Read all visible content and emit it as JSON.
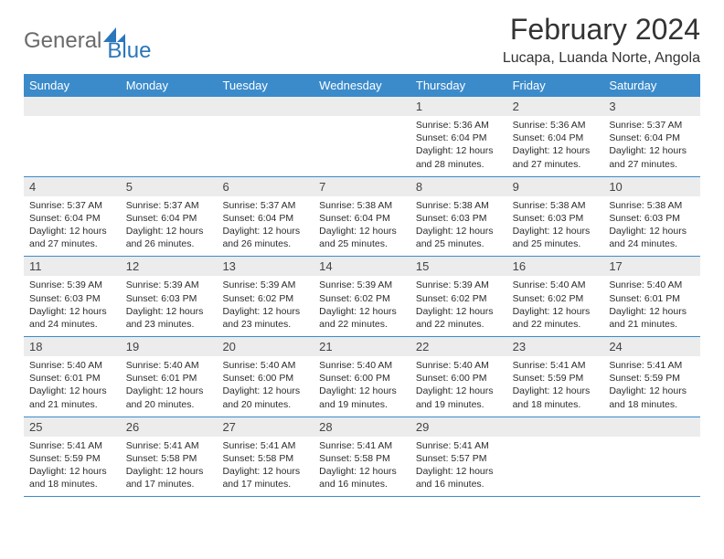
{
  "brand": {
    "general": "General",
    "blue": "Blue",
    "logo_color": "#2a77bb",
    "text_gray": "#6a6a6a"
  },
  "title": "February 2024",
  "subtitle": "Lucapa, Luanda Norte, Angola",
  "colors": {
    "header_bg": "#3b8bcb",
    "daynum_bg": "#ececec",
    "text": "#2b2b2b",
    "title_color": "#333333"
  },
  "weekdays": [
    "Sunday",
    "Monday",
    "Tuesday",
    "Wednesday",
    "Thursday",
    "Friday",
    "Saturday"
  ],
  "weeks": [
    [
      {
        "n": "",
        "sunrise": "",
        "sunset": "",
        "daylight": ""
      },
      {
        "n": "",
        "sunrise": "",
        "sunset": "",
        "daylight": ""
      },
      {
        "n": "",
        "sunrise": "",
        "sunset": "",
        "daylight": ""
      },
      {
        "n": "",
        "sunrise": "",
        "sunset": "",
        "daylight": ""
      },
      {
        "n": "1",
        "sunrise": "Sunrise: 5:36 AM",
        "sunset": "Sunset: 6:04 PM",
        "daylight": "Daylight: 12 hours and 28 minutes."
      },
      {
        "n": "2",
        "sunrise": "Sunrise: 5:36 AM",
        "sunset": "Sunset: 6:04 PM",
        "daylight": "Daylight: 12 hours and 27 minutes."
      },
      {
        "n": "3",
        "sunrise": "Sunrise: 5:37 AM",
        "sunset": "Sunset: 6:04 PM",
        "daylight": "Daylight: 12 hours and 27 minutes."
      }
    ],
    [
      {
        "n": "4",
        "sunrise": "Sunrise: 5:37 AM",
        "sunset": "Sunset: 6:04 PM",
        "daylight": "Daylight: 12 hours and 27 minutes."
      },
      {
        "n": "5",
        "sunrise": "Sunrise: 5:37 AM",
        "sunset": "Sunset: 6:04 PM",
        "daylight": "Daylight: 12 hours and 26 minutes."
      },
      {
        "n": "6",
        "sunrise": "Sunrise: 5:37 AM",
        "sunset": "Sunset: 6:04 PM",
        "daylight": "Daylight: 12 hours and 26 minutes."
      },
      {
        "n": "7",
        "sunrise": "Sunrise: 5:38 AM",
        "sunset": "Sunset: 6:04 PM",
        "daylight": "Daylight: 12 hours and 25 minutes."
      },
      {
        "n": "8",
        "sunrise": "Sunrise: 5:38 AM",
        "sunset": "Sunset: 6:03 PM",
        "daylight": "Daylight: 12 hours and 25 minutes."
      },
      {
        "n": "9",
        "sunrise": "Sunrise: 5:38 AM",
        "sunset": "Sunset: 6:03 PM",
        "daylight": "Daylight: 12 hours and 25 minutes."
      },
      {
        "n": "10",
        "sunrise": "Sunrise: 5:38 AM",
        "sunset": "Sunset: 6:03 PM",
        "daylight": "Daylight: 12 hours and 24 minutes."
      }
    ],
    [
      {
        "n": "11",
        "sunrise": "Sunrise: 5:39 AM",
        "sunset": "Sunset: 6:03 PM",
        "daylight": "Daylight: 12 hours and 24 minutes."
      },
      {
        "n": "12",
        "sunrise": "Sunrise: 5:39 AM",
        "sunset": "Sunset: 6:03 PM",
        "daylight": "Daylight: 12 hours and 23 minutes."
      },
      {
        "n": "13",
        "sunrise": "Sunrise: 5:39 AM",
        "sunset": "Sunset: 6:02 PM",
        "daylight": "Daylight: 12 hours and 23 minutes."
      },
      {
        "n": "14",
        "sunrise": "Sunrise: 5:39 AM",
        "sunset": "Sunset: 6:02 PM",
        "daylight": "Daylight: 12 hours and 22 minutes."
      },
      {
        "n": "15",
        "sunrise": "Sunrise: 5:39 AM",
        "sunset": "Sunset: 6:02 PM",
        "daylight": "Daylight: 12 hours and 22 minutes."
      },
      {
        "n": "16",
        "sunrise": "Sunrise: 5:40 AM",
        "sunset": "Sunset: 6:02 PM",
        "daylight": "Daylight: 12 hours and 22 minutes."
      },
      {
        "n": "17",
        "sunrise": "Sunrise: 5:40 AM",
        "sunset": "Sunset: 6:01 PM",
        "daylight": "Daylight: 12 hours and 21 minutes."
      }
    ],
    [
      {
        "n": "18",
        "sunrise": "Sunrise: 5:40 AM",
        "sunset": "Sunset: 6:01 PM",
        "daylight": "Daylight: 12 hours and 21 minutes."
      },
      {
        "n": "19",
        "sunrise": "Sunrise: 5:40 AM",
        "sunset": "Sunset: 6:01 PM",
        "daylight": "Daylight: 12 hours and 20 minutes."
      },
      {
        "n": "20",
        "sunrise": "Sunrise: 5:40 AM",
        "sunset": "Sunset: 6:00 PM",
        "daylight": "Daylight: 12 hours and 20 minutes."
      },
      {
        "n": "21",
        "sunrise": "Sunrise: 5:40 AM",
        "sunset": "Sunset: 6:00 PM",
        "daylight": "Daylight: 12 hours and 19 minutes."
      },
      {
        "n": "22",
        "sunrise": "Sunrise: 5:40 AM",
        "sunset": "Sunset: 6:00 PM",
        "daylight": "Daylight: 12 hours and 19 minutes."
      },
      {
        "n": "23",
        "sunrise": "Sunrise: 5:41 AM",
        "sunset": "Sunset: 5:59 PM",
        "daylight": "Daylight: 12 hours and 18 minutes."
      },
      {
        "n": "24",
        "sunrise": "Sunrise: 5:41 AM",
        "sunset": "Sunset: 5:59 PM",
        "daylight": "Daylight: 12 hours and 18 minutes."
      }
    ],
    [
      {
        "n": "25",
        "sunrise": "Sunrise: 5:41 AM",
        "sunset": "Sunset: 5:59 PM",
        "daylight": "Daylight: 12 hours and 18 minutes."
      },
      {
        "n": "26",
        "sunrise": "Sunrise: 5:41 AM",
        "sunset": "Sunset: 5:58 PM",
        "daylight": "Daylight: 12 hours and 17 minutes."
      },
      {
        "n": "27",
        "sunrise": "Sunrise: 5:41 AM",
        "sunset": "Sunset: 5:58 PM",
        "daylight": "Daylight: 12 hours and 17 minutes."
      },
      {
        "n": "28",
        "sunrise": "Sunrise: 5:41 AM",
        "sunset": "Sunset: 5:58 PM",
        "daylight": "Daylight: 12 hours and 16 minutes."
      },
      {
        "n": "29",
        "sunrise": "Sunrise: 5:41 AM",
        "sunset": "Sunset: 5:57 PM",
        "daylight": "Daylight: 12 hours and 16 minutes."
      },
      {
        "n": "",
        "sunrise": "",
        "sunset": "",
        "daylight": ""
      },
      {
        "n": "",
        "sunrise": "",
        "sunset": "",
        "daylight": ""
      }
    ]
  ]
}
